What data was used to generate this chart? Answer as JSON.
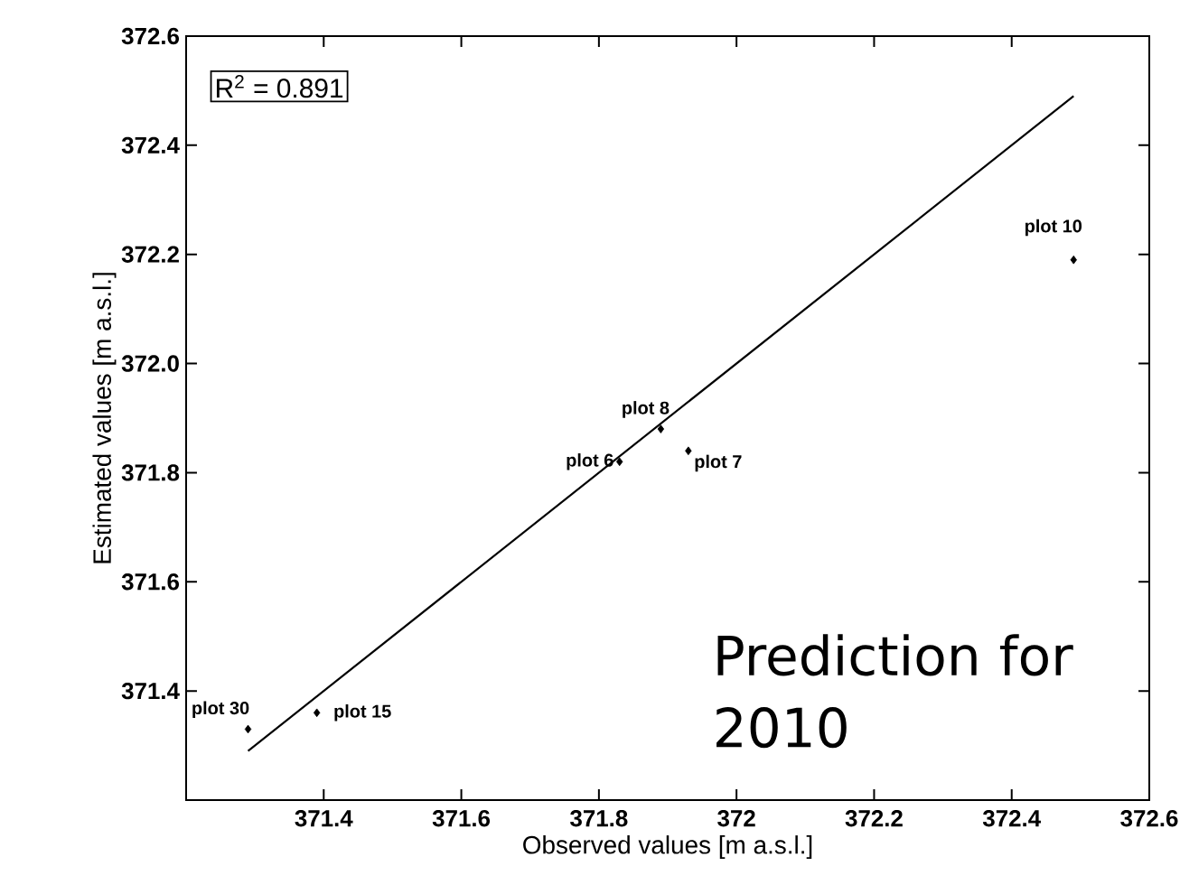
{
  "chart_data": {
    "type": "scatter",
    "xlabel": "Observed values [m a.s.l.]",
    "ylabel": "Estimated values [m a.s.l.]",
    "xlim": [
      371.2,
      372.6
    ],
    "ylim": [
      371.2,
      372.6
    ],
    "xticks": [
      {
        "value": 371.2,
        "label": null
      },
      371.4,
      371.6,
      371.8,
      372,
      372.2,
      372.4,
      372.6
    ],
    "yticks": [
      {
        "value": 371.2,
        "label": null
      },
      371.4,
      371.6,
      371.8,
      {
        "value": 372,
        "label": "372.0"
      },
      372.2,
      372.4,
      372.6
    ],
    "grid": false,
    "series": [
      {
        "marker": "diamond",
        "color": "#000000",
        "x": [
          371.29,
          371.39,
          371.83,
          371.89,
          371.93,
          372.49
        ],
        "values": [
          371.33,
          371.36,
          371.82,
          371.88,
          371.84,
          372.19
        ]
      },
      {
        "type": "line",
        "marker": "none",
        "color": "#000000",
        "line_style": "solid",
        "x": [
          371.29,
          372.49
        ],
        "values": [
          371.29,
          372.49
        ]
      }
    ],
    "annotations": [
      "R$^{2}$ = 0.891",
      "Prediction for 2010",
      {
        "text": "plot 30",
        "x": 371.29,
        "y": 371.33
      },
      {
        "text": "plot 15",
        "x": 371.39,
        "y": 371.36
      },
      {
        "text": "plot 6",
        "x": 371.83,
        "y": 371.82
      },
      {
        "text": "plot 8",
        "x": 371.89,
        "y": 371.88
      },
      {
        "text": "plot 7",
        "x": 371.93,
        "y": 371.84
      },
      {
        "text": "plot 10",
        "x": 372.49,
        "y": 372.19
      }
    ]
  }
}
